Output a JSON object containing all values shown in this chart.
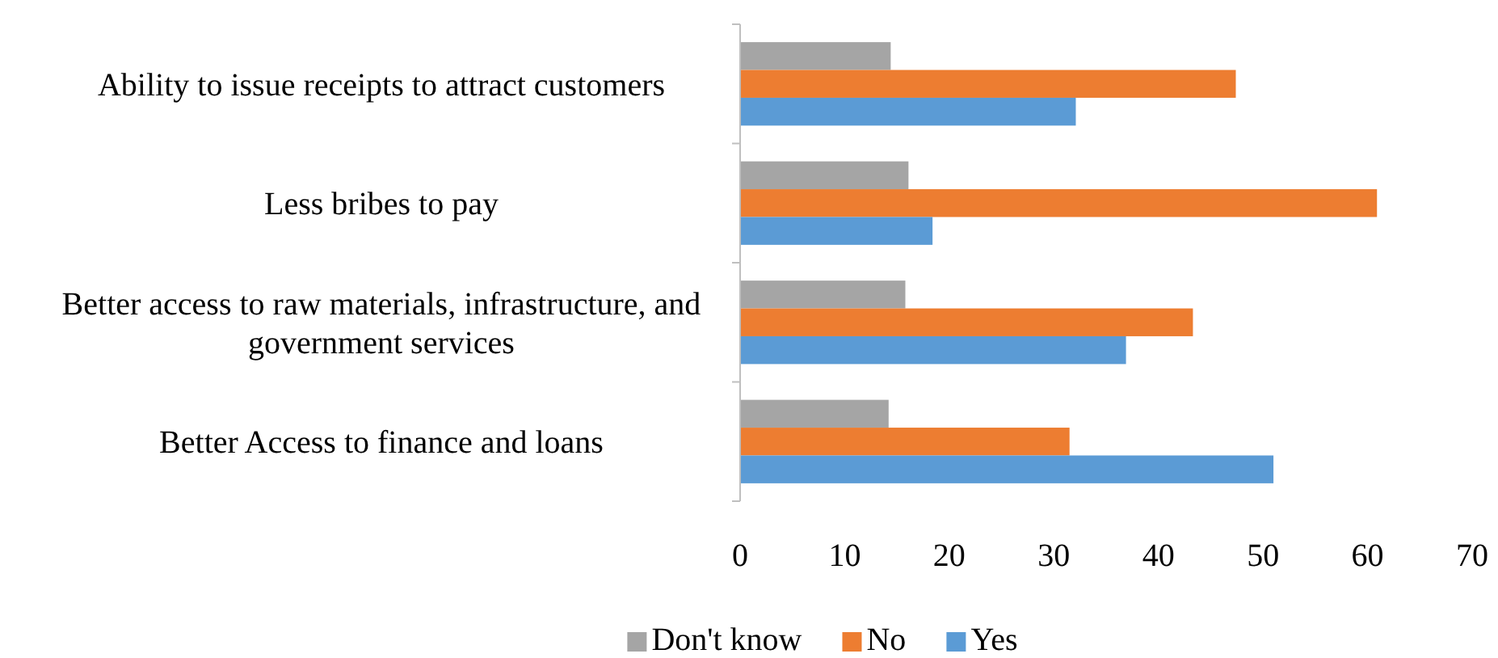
{
  "chart_data": {
    "type": "bar",
    "orientation": "horizontal",
    "categories": [
      "Ability to issue receipts to attract customers",
      "Less bribes to pay",
      "Better access to raw materials, infrastructure, and government services",
      "Better Access to finance and loans"
    ],
    "series": [
      {
        "name": "Don't know",
        "color": "#a5a5a5",
        "values": [
          14.4,
          16.1,
          15.8,
          14.2
        ]
      },
      {
        "name": "No",
        "color": "#ed7d31",
        "values": [
          47.4,
          60.9,
          43.3,
          31.5
        ]
      },
      {
        "name": "Yes",
        "color": "#5b9bd5",
        "values": [
          32.1,
          18.4,
          36.9,
          51.0
        ]
      }
    ],
    "xlim": [
      0,
      70
    ],
    "xticks": [
      0,
      10,
      20,
      30,
      40,
      50,
      60,
      70
    ],
    "grid": false,
    "legend": "bottom"
  }
}
